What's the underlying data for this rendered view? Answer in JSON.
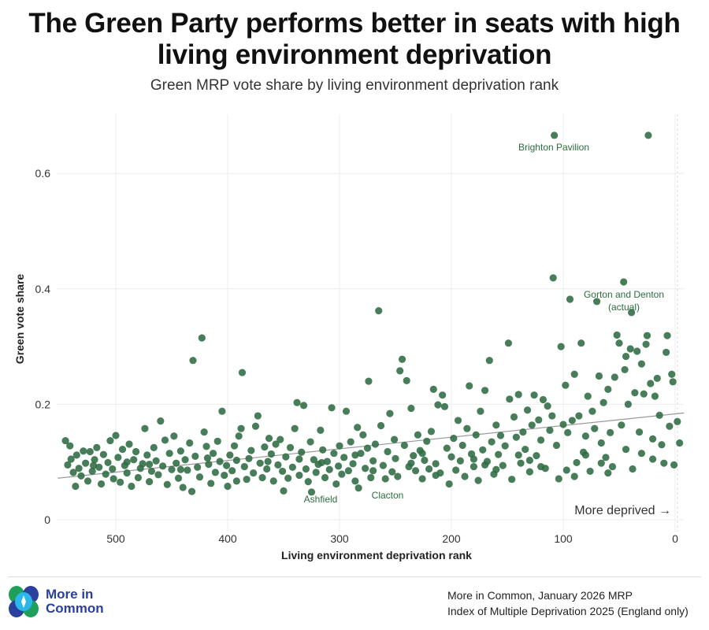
{
  "title_line1": "The Green Party performs better in seats with high",
  "title_line2": "living environment deprivation",
  "subtitle": "Green MRP vote share by living environment deprivation rank",
  "source_line1": "More in Common, January 2026 MRP",
  "source_line2": "Index of Multiple Deprivation 2025 (England only)",
  "logo_text": "More in Common",
  "colors": {
    "points": "#2f6b43",
    "labels": "#2d6b3f",
    "trend": "#999999",
    "logo_blue": "#2a3f9e",
    "logo_green": "#1ea05a",
    "logo_cyan": "#2bb8e8"
  },
  "chart_data": {
    "type": "scatter",
    "xlabel": "Living environment deprivation rank",
    "ylabel": "Green vote share",
    "x_reversed": true,
    "xlim": [
      552,
      -8
    ],
    "ylim": [
      0,
      0.7
    ],
    "x_ticks": [
      "500",
      "400",
      "300",
      "200",
      "100",
      "0"
    ],
    "x_tick_values": [
      500,
      400,
      300,
      200,
      100,
      0
    ],
    "y_ticks": [
      "0",
      "0.2",
      "0.4",
      "0.6"
    ],
    "y_tick_values": [
      0,
      0.2,
      0.4,
      0.6
    ],
    "grid": true,
    "annotation": "More deprived →",
    "trend_line": [
      [
        552,
        0.072
      ],
      [
        -8,
        0.185
      ]
    ],
    "labels": [
      {
        "text": "Brighton Pavilion",
        "rank": 108,
        "share": 0.666
      },
      {
        "text": "Gorton and Denton",
        "text2": "(actual)",
        "rank": 46,
        "share": 0.412
      },
      {
        "text": "Ashfield",
        "rank": 325,
        "share": 0.048
      },
      {
        "text": "Clacton",
        "rank": 283,
        "share": 0.055
      }
    ],
    "points": [
      [
        545,
        0.137
      ],
      [
        543,
        0.095
      ],
      [
        541,
        0.128
      ],
      [
        540,
        0.105
      ],
      [
        538,
        0.082
      ],
      [
        536,
        0.058
      ],
      [
        535,
        0.112
      ],
      [
        533,
        0.089
      ],
      [
        531,
        0.076
      ],
      [
        529,
        0.119
      ],
      [
        527,
        0.098
      ],
      [
        525,
        0.067
      ],
      [
        523,
        0.118
      ],
      [
        521,
        0.084
      ],
      [
        519,
        0.104
      ],
      [
        517,
        0.125
      ],
      [
        515,
        0.091
      ],
      [
        513,
        0.062
      ],
      [
        511,
        0.113
      ],
      [
        509,
        0.079
      ],
      [
        507,
        0.099
      ],
      [
        505,
        0.137
      ],
      [
        503,
        0.088
      ],
      [
        502,
        0.071
      ],
      [
        500,
        0.146
      ],
      [
        498,
        0.108
      ],
      [
        496,
        0.065
      ],
      [
        494,
        0.122
      ],
      [
        492,
        0.094
      ],
      [
        490,
        0.081
      ],
      [
        488,
        0.131
      ],
      [
        486,
        0.058
      ],
      [
        484,
        0.104
      ],
      [
        482,
        0.118
      ],
      [
        480,
        0.073
      ],
      [
        478,
        0.089
      ],
      [
        476,
        0.097
      ],
      [
        474,
        0.158
      ],
      [
        472,
        0.112
      ],
      [
        470,
        0.066
      ],
      [
        468,
        0.084
      ],
      [
        466,
        0.125
      ],
      [
        464,
        0.102
      ],
      [
        462,
        0.078
      ],
      [
        460,
        0.171
      ],
      [
        458,
        0.093
      ],
      [
        456,
        0.138
      ],
      [
        454,
        0.061
      ],
      [
        452,
        0.115
      ],
      [
        450,
        0.087
      ],
      [
        448,
        0.145
      ],
      [
        446,
        0.098
      ],
      [
        444,
        0.072
      ],
      [
        442,
        0.119
      ],
      [
        440,
        0.056
      ],
      [
        438,
        0.104
      ],
      [
        436,
        0.086
      ],
      [
        434,
        0.133
      ],
      [
        432,
        0.049
      ],
      [
        431,
        0.276
      ],
      [
        429,
        0.11
      ],
      [
        427,
        0.091
      ],
      [
        425,
        0.074
      ],
      [
        423,
        0.315
      ],
      [
        421,
        0.152
      ],
      [
        419,
        0.127
      ],
      [
        417,
        0.096
      ],
      [
        415,
        0.063
      ],
      [
        413,
        0.115
      ],
      [
        411,
        0.082
      ],
      [
        409,
        0.136
      ],
      [
        407,
        0.101
      ],
      [
        405,
        0.188
      ],
      [
        403,
        0.077
      ],
      [
        401,
        0.094
      ],
      [
        400,
        0.058
      ],
      [
        398,
        0.112
      ],
      [
        396,
        0.085
      ],
      [
        394,
        0.128
      ],
      [
        392,
        0.067
      ],
      [
        390,
        0.145
      ],
      [
        388,
        0.158
      ],
      [
        387,
        0.255
      ],
      [
        385,
        0.092
      ],
      [
        383,
        0.07
      ],
      [
        381,
        0.106
      ],
      [
        379,
        0.12
      ],
      [
        377,
        0.081
      ],
      [
        375,
        0.162
      ],
      [
        373,
        0.18
      ],
      [
        371,
        0.098
      ],
      [
        369,
        0.073
      ],
      [
        367,
        0.126
      ],
      [
        365,
        0.088
      ],
      [
        363,
        0.141
      ],
      [
        361,
        0.114
      ],
      [
        359,
        0.067
      ],
      [
        357,
        0.131
      ],
      [
        355,
        0.095
      ],
      [
        353,
        0.139
      ],
      [
        351,
        0.084
      ],
      [
        350,
        0.05
      ],
      [
        348,
        0.109
      ],
      [
        346,
        0.072
      ],
      [
        344,
        0.125
      ],
      [
        342,
        0.091
      ],
      [
        340,
        0.158
      ],
      [
        338,
        0.203
      ],
      [
        336,
        0.077
      ],
      [
        334,
        0.117
      ],
      [
        332,
        0.198
      ],
      [
        330,
        0.088
      ],
      [
        328,
        0.066
      ],
      [
        326,
        0.135
      ],
      [
        325,
        0.048
      ],
      [
        323,
        0.104
      ],
      [
        321,
        0.082
      ],
      [
        319,
        0.096
      ],
      [
        317,
        0.155
      ],
      [
        315,
        0.121
      ],
      [
        313,
        0.073
      ],
      [
        311,
        0.101
      ],
      [
        309,
        0.087
      ],
      [
        307,
        0.194
      ],
      [
        305,
        0.115
      ],
      [
        303,
        0.062
      ],
      [
        301,
        0.093
      ],
      [
        300,
        0.128
      ],
      [
        298,
        0.079
      ],
      [
        296,
        0.108
      ],
      [
        294,
        0.188
      ],
      [
        292,
        0.085
      ],
      [
        290,
        0.135
      ],
      [
        288,
        0.097
      ],
      [
        286,
        0.067
      ],
      [
        284,
        0.16
      ],
      [
        283,
        0.055
      ],
      [
        281,
        0.115
      ],
      [
        279,
        0.147
      ],
      [
        277,
        0.089
      ],
      [
        275,
        0.124
      ],
      [
        274,
        0.24
      ],
      [
        272,
        0.073
      ],
      [
        270,
        0.102
      ],
      [
        268,
        0.131
      ],
      [
        265,
        0.362
      ],
      [
        263,
        0.163
      ],
      [
        261,
        0.094
      ],
      [
        259,
        0.071
      ],
      [
        257,
        0.118
      ],
      [
        255,
        0.184
      ],
      [
        253,
        0.083
      ],
      [
        251,
        0.139
      ],
      [
        250,
        0.106
      ],
      [
        248,
        0.075
      ],
      [
        246,
        0.258
      ],
      [
        244,
        0.278
      ],
      [
        242,
        0.129
      ],
      [
        240,
        0.241
      ],
      [
        238,
        0.092
      ],
      [
        236,
        0.193
      ],
      [
        234,
        0.111
      ],
      [
        232,
        0.085
      ],
      [
        230,
        0.147
      ],
      [
        228,
        0.12
      ],
      [
        226,
        0.071
      ],
      [
        224,
        0.103
      ],
      [
        222,
        0.136
      ],
      [
        220,
        0.088
      ],
      [
        218,
        0.153
      ],
      [
        216,
        0.226
      ],
      [
        214,
        0.097
      ],
      [
        212,
        0.199
      ],
      [
        210,
        0.081
      ],
      [
        208,
        0.216
      ],
      [
        206,
        0.196
      ],
      [
        204,
        0.124
      ],
      [
        202,
        0.062
      ],
      [
        200,
        0.109
      ],
      [
        198,
        0.141
      ],
      [
        196,
        0.086
      ],
      [
        194,
        0.172
      ],
      [
        192,
        0.102
      ],
      [
        190,
        0.129
      ],
      [
        188,
        0.075
      ],
      [
        186,
        0.158
      ],
      [
        184,
        0.232
      ],
      [
        182,
        0.114
      ],
      [
        180,
        0.092
      ],
      [
        178,
        0.147
      ],
      [
        176,
        0.068
      ],
      [
        174,
        0.188
      ],
      [
        172,
        0.121
      ],
      [
        170,
        0.224
      ],
      [
        168,
        0.101
      ],
      [
        166,
        0.276
      ],
      [
        164,
        0.135
      ],
      [
        162,
        0.079
      ],
      [
        160,
        0.164
      ],
      [
        158,
        0.113
      ],
      [
        156,
        0.146
      ],
      [
        154,
        0.094
      ],
      [
        152,
        0.128
      ],
      [
        149,
        0.306
      ],
      [
        148,
        0.209
      ],
      [
        146,
        0.07
      ],
      [
        144,
        0.178
      ],
      [
        142,
        0.143
      ],
      [
        140,
        0.217
      ],
      [
        138,
        0.098
      ],
      [
        136,
        0.152
      ],
      [
        134,
        0.122
      ],
      [
        132,
        0.19
      ],
      [
        130,
        0.083
      ],
      [
        128,
        0.164
      ],
      [
        126,
        0.216
      ],
      [
        124,
        0.111
      ],
      [
        122,
        0.173
      ],
      [
        120,
        0.138
      ],
      [
        118,
        0.208
      ],
      [
        116,
        0.089
      ],
      [
        114,
        0.197
      ],
      [
        112,
        0.155
      ],
      [
        110,
        0.18
      ],
      [
        109,
        0.419
      ],
      [
        108,
        0.666
      ],
      [
        106,
        0.129
      ],
      [
        104,
        0.071
      ],
      [
        102,
        0.3
      ],
      [
        100,
        0.165
      ],
      [
        98,
        0.233
      ],
      [
        97,
        0.086
      ],
      [
        96,
        0.151
      ],
      [
        94,
        0.382
      ],
      [
        92,
        0.172
      ],
      [
        90,
        0.252
      ],
      [
        88,
        0.099
      ],
      [
        86,
        0.18
      ],
      [
        84,
        0.306
      ],
      [
        82,
        0.117
      ],
      [
        80,
        0.145
      ],
      [
        78,
        0.214
      ],
      [
        76,
        0.084
      ],
      [
        74,
        0.188
      ],
      [
        72,
        0.158
      ],
      [
        70,
        0.378
      ],
      [
        68,
        0.249
      ],
      [
        66,
        0.133
      ],
      [
        64,
        0.203
      ],
      [
        62,
        0.108
      ],
      [
        60,
        0.226
      ],
      [
        58,
        0.151
      ],
      [
        56,
        0.092
      ],
      [
        54,
        0.247
      ],
      [
        52,
        0.32
      ],
      [
        50,
        0.306
      ],
      [
        48,
        0.164
      ],
      [
        46,
        0.412
      ],
      [
        45,
        0.26
      ],
      [
        44,
        0.283
      ],
      [
        42,
        0.2
      ],
      [
        40,
        0.296
      ],
      [
        39,
        0.359
      ],
      [
        38,
        0.088
      ],
      [
        36,
        0.22
      ],
      [
        34,
        0.292
      ],
      [
        32,
        0.152
      ],
      [
        30,
        0.27
      ],
      [
        28,
        0.218
      ],
      [
        26,
        0.304
      ],
      [
        25,
        0.319
      ],
      [
        24,
        0.666
      ],
      [
        22,
        0.236
      ],
      [
        20,
        0.105
      ],
      [
        18,
        0.214
      ],
      [
        16,
        0.245
      ],
      [
        14,
        0.181
      ],
      [
        12,
        0.13
      ],
      [
        10,
        0.098
      ],
      [
        8,
        0.29
      ],
      [
        7,
        0.319
      ],
      [
        5,
        0.162
      ],
      [
        3,
        0.252
      ],
      [
        2,
        0.239
      ],
      [
        1,
        0.095
      ],
      [
        -2,
        0.17
      ],
      [
        -4,
        0.133
      ],
      [
        180,
        0.105
      ],
      [
        170,
        0.095
      ],
      [
        160,
        0.087
      ],
      [
        140,
        0.112
      ],
      [
        130,
        0.103
      ],
      [
        120,
        0.092
      ],
      [
        90,
        0.075
      ],
      [
        80,
        0.112
      ],
      [
        66,
        0.098
      ],
      [
        60,
        0.081
      ],
      [
        44,
        0.122
      ],
      [
        30,
        0.115
      ],
      [
        20,
        0.14
      ],
      [
        236,
        0.098
      ],
      [
        226,
        0.115
      ],
      [
        214,
        0.077
      ],
      [
        286,
        0.112
      ],
      [
        270,
        0.085
      ],
      [
        316,
        0.099
      ],
      [
        336,
        0.105
      ],
      [
        364,
        0.101
      ],
      [
        392,
        0.103
      ],
      [
        418,
        0.107
      ],
      [
        442,
        0.087
      ],
      [
        470,
        0.096
      ],
      [
        490,
        0.1
      ],
      [
        520,
        0.094
      ]
    ]
  }
}
